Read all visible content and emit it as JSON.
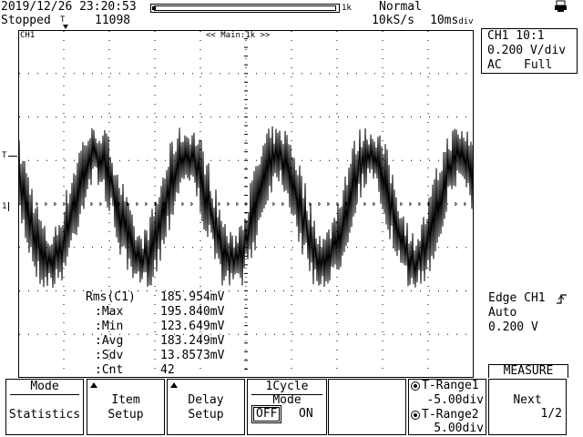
{
  "header": {
    "datetime": "2019/12/26 23:20:53",
    "run_state": "Stopped",
    "trigger_symbol": "T",
    "record_count": "11098",
    "zoom_label": "1k",
    "trigger_mode": "Normal",
    "sample_rate": "10kS/s",
    "time_div": "10ms",
    "time_div_unit": "div",
    "record_position": 0.02
  },
  "screen": {
    "channel_tag": "CH1",
    "main_label": "<< Main:1k >>",
    "trigger_level_mark": "T",
    "ground_mark": "1"
  },
  "channel": {
    "line1": "CH1 10:1",
    "line2": "0.200 V/div",
    "coupling": "AC",
    "bandwidth": "Full"
  },
  "trigger": {
    "type": "Edge CH1",
    "mode": "Auto",
    "level": "0.200 V"
  },
  "stats": {
    "title": "Rms(C1)",
    "rows": [
      {
        "label": ":Max",
        "value": "195.840mV"
      },
      {
        "label": ":Min",
        "value": "123.649mV"
      },
      {
        "label": ":Avg",
        "value": "183.249mV"
      },
      {
        "label": ":Sdv",
        "value": "13.8573mV"
      },
      {
        "label": ":Cnt",
        "value": "42"
      }
    ],
    "rms_value": "185.954mV"
  },
  "softkeys": {
    "mode_label": "Mode",
    "mode_value": "Statistics",
    "item_line1": "Item",
    "item_line2": "Setup",
    "delay_line1": "Delay",
    "delay_line2": "Setup",
    "cycle_title": "1Cycle Mode",
    "cycle_off": "OFF",
    "cycle_on": "ON",
    "trange1_label": "T-Range1",
    "trange1_value": "-5.00div",
    "trange2_label": "T-Range2",
    "trange2_value": "5.00div",
    "measure_title": "MEASURE",
    "next_label": "Next",
    "next_page": "1/2"
  },
  "colors": {
    "fg": "#000000",
    "bg": "#ffffff"
  }
}
